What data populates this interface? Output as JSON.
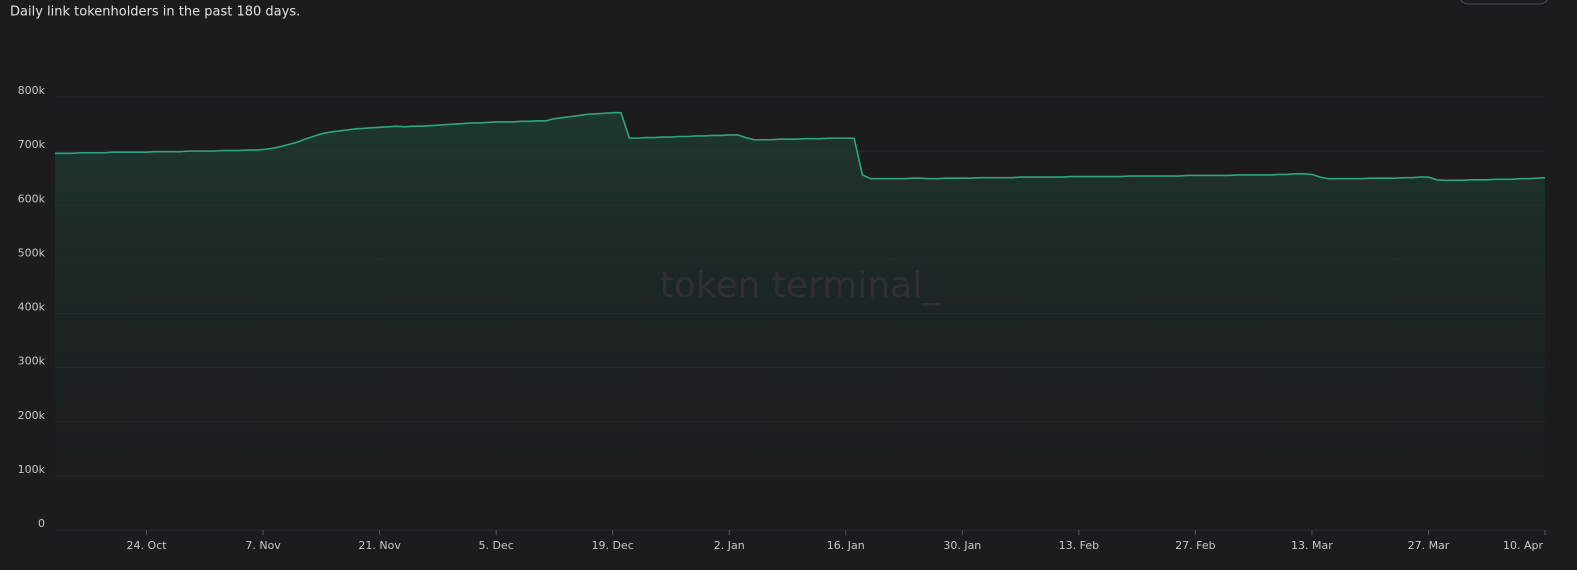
{
  "chart_data": {
    "type": "line",
    "title": "Daily link tokenholders in the past 180 days.",
    "watermark": "token terminal_",
    "categories": [
      null,
      null,
      null,
      null,
      null,
      null,
      null,
      null,
      null,
      null,
      null,
      "24. Oct",
      null,
      null,
      null,
      null,
      null,
      null,
      null,
      null,
      null,
      null,
      null,
      null,
      null,
      "7. Nov",
      null,
      null,
      null,
      null,
      null,
      null,
      null,
      null,
      null,
      null,
      null,
      null,
      null,
      "21. Nov",
      null,
      null,
      null,
      null,
      null,
      null,
      null,
      null,
      null,
      null,
      null,
      null,
      null,
      "5. Dec",
      null,
      null,
      null,
      null,
      null,
      null,
      null,
      null,
      null,
      null,
      null,
      null,
      null,
      "19. Dec",
      null,
      null,
      null,
      null,
      null,
      null,
      null,
      null,
      null,
      null,
      null,
      null,
      null,
      "2. Jan",
      null,
      null,
      null,
      null,
      null,
      null,
      null,
      null,
      null,
      null,
      null,
      null,
      null,
      "16. Jan",
      null,
      null,
      null,
      null,
      null,
      null,
      null,
      null,
      null,
      null,
      null,
      null,
      null,
      "30. Jan",
      null,
      null,
      null,
      null,
      null,
      null,
      null,
      null,
      null,
      null,
      null,
      null,
      null,
      "13. Feb",
      null,
      null,
      null,
      null,
      null,
      null,
      null,
      null,
      null,
      null,
      null,
      null,
      null,
      "27. Feb",
      null,
      null,
      null,
      null,
      null,
      null,
      null,
      null,
      null,
      null,
      null,
      null,
      null,
      "13. Mar",
      null,
      null,
      null,
      null,
      null,
      null,
      null,
      null,
      null,
      null,
      null,
      null,
      null,
      "27. Mar",
      null,
      null,
      null,
      null,
      null,
      null,
      null,
      null,
      null,
      null,
      null,
      null,
      null,
      "10. Apr"
    ],
    "series": [
      {
        "name": "Tokenholders",
        "color": "#2fa57f",
        "values": [
          696000,
          696000,
          696000,
          697000,
          697000,
          697000,
          697000,
          698000,
          698000,
          698000,
          698000,
          698000,
          699000,
          699000,
          699000,
          699000,
          700000,
          700000,
          700000,
          700000,
          701000,
          701000,
          701000,
          702000,
          702000,
          703000,
          705000,
          708000,
          712000,
          716000,
          722000,
          727000,
          732000,
          735000,
          737000,
          739000,
          741000,
          742000,
          743000,
          744000,
          745000,
          746000,
          745000,
          746000,
          746000,
          747000,
          748000,
          749000,
          750000,
          751000,
          752000,
          752000,
          753000,
          754000,
          754000,
          754000,
          755000,
          755000,
          756000,
          756000,
          760000,
          762000,
          764000,
          766000,
          768000,
          769000,
          770000,
          771000,
          771000,
          724000,
          724000,
          725000,
          725000,
          726000,
          726000,
          727000,
          727000,
          728000,
          728000,
          729000,
          729000,
          730000,
          730000,
          725000,
          721000,
          721000,
          721000,
          722000,
          722000,
          722000,
          723000,
          723000,
          723000,
          724000,
          724000,
          724000,
          724000,
          656000,
          649000,
          649000,
          649000,
          649000,
          649000,
          650000,
          650000,
          649000,
          649000,
          650000,
          650000,
          650000,
          650000,
          651000,
          651000,
          651000,
          651000,
          651000,
          652000,
          652000,
          652000,
          652000,
          652000,
          652000,
          653000,
          653000,
          653000,
          653000,
          653000,
          653000,
          653000,
          654000,
          654000,
          654000,
          654000,
          654000,
          654000,
          654000,
          655000,
          655000,
          655000,
          655000,
          655000,
          655000,
          656000,
          656000,
          656000,
          656000,
          656000,
          657000,
          657000,
          658000,
          658000,
          657000,
          652000,
          649000,
          649000,
          649000,
          649000,
          649000,
          650000,
          650000,
          650000,
          650000,
          651000,
          651000,
          652000,
          652000,
          647000,
          646000,
          646000,
          646000,
          647000,
          647000,
          647000,
          648000,
          648000,
          648000,
          649000,
          649000,
          650000,
          651000
        ]
      }
    ],
    "ylim": [
      0,
      800000
    ],
    "yticks": [
      {
        "value": 0,
        "label": "0"
      },
      {
        "value": 100000,
        "label": "100k"
      },
      {
        "value": 200000,
        "label": "200k"
      },
      {
        "value": 300000,
        "label": "300k"
      },
      {
        "value": 400000,
        "label": "400k"
      },
      {
        "value": 500000,
        "label": "500k"
      },
      {
        "value": 600000,
        "label": "600k"
      },
      {
        "value": 700000,
        "label": "700k"
      },
      {
        "value": 800000,
        "label": "800k"
      }
    ],
    "grid": true
  }
}
